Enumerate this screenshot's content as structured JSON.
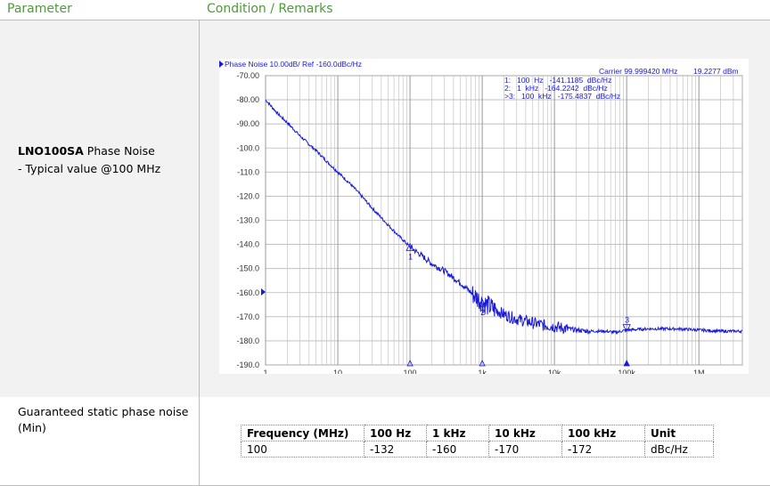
{
  "header": {
    "col1": "Parameter",
    "col2": "Condition / Remarks"
  },
  "row1": {
    "product": "LNO100SA",
    "title_rest": " Phase Noise",
    "subtitle": "- Typical value @100 MHz"
  },
  "row2": {
    "label": "Guaranteed static phase noise (Min)"
  },
  "table": {
    "headers": [
      "Frequency (MHz)",
      "100 Hz",
      "1 kHz",
      "10 kHz",
      "100 kHz",
      "Unit"
    ],
    "row": [
      "100",
      "-132",
      "-160",
      "-170",
      "-172",
      "dBc/Hz"
    ]
  },
  "chart_data": {
    "type": "line",
    "title": "Phase Noise 10.00dB/ Ref -160.0dBc/Hz",
    "carrier": "Carrier 99.999420 MHz",
    "carrier_power": "19.2277 dBm",
    "ylim": [
      -190,
      -70
    ],
    "xlim": [
      1,
      4000000
    ],
    "xscale": "log",
    "yticks": [
      "-70.00",
      "-80.00",
      "-90.00",
      "-100.0",
      "-110.0",
      "-120.0",
      "-130.0",
      "-140.0",
      "-150.0",
      "-160.0",
      "-170.0",
      "-180.0",
      "-190.0"
    ],
    "xticks": [
      {
        "v": 1,
        "label": "1"
      },
      {
        "v": 10,
        "label": "10"
      },
      {
        "v": 100,
        "label": "100"
      },
      {
        "v": 1000,
        "label": "1k"
      },
      {
        "v": 10000,
        "label": "10k"
      },
      {
        "v": 100000,
        "label": "100k"
      },
      {
        "v": 1000000,
        "label": "1M"
      }
    ],
    "markers": [
      {
        "id": "1",
        "x": 100,
        "y": -141.1185,
        "label": "1:   100  Hz   -141.1185  dBc/Hz"
      },
      {
        "id": "2",
        "x": 1000,
        "y": -164.2242,
        "label": "2:   1  kHz   -164.2242  dBc/Hz"
      },
      {
        "id": "3",
        "x": 100000,
        "y": -175.4837,
        "label": ">3:   100  kHz   -175.4837  dBc/Hz"
      }
    ],
    "series": [
      {
        "x": [
          1,
          1.5,
          2,
          3,
          4,
          5,
          7,
          10,
          15,
          20,
          30,
          50,
          70,
          100,
          150,
          200,
          300,
          500,
          700,
          1000,
          1500,
          2000,
          3000,
          5000,
          7000,
          10000,
          15000,
          20000,
          30000,
          50000,
          70000,
          100000,
          200000,
          500000,
          1000000,
          2000000,
          4000000
        ],
        "y": [
          -80,
          -86,
          -89.5,
          -95,
          -98.5,
          -101,
          -105.5,
          -110,
          -115,
          -119,
          -125,
          -132,
          -136.5,
          -141,
          -145,
          -148,
          -151,
          -156,
          -160,
          -164,
          -167,
          -169,
          -171,
          -172.5,
          -173.5,
          -174,
          -175,
          -175.5,
          -176,
          -176,
          -176.5,
          -175.5,
          -175,
          -175,
          -175.5,
          -176,
          -176
        ]
      }
    ]
  }
}
